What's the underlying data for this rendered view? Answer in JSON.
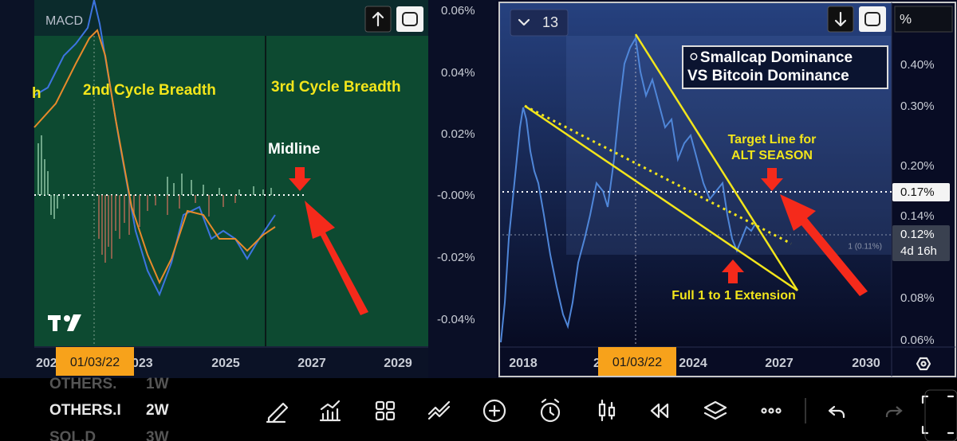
{
  "left_panel": {
    "indicator": "MACD",
    "annotations": [
      "h",
      "2nd Cycle Breadth",
      "3rd Cycle Breadth",
      "Midline"
    ],
    "y_axis_labels": [
      "0.06%",
      "0.04%",
      "0.02%",
      "-0.00%",
      "-0.02%",
      "-0.04%"
    ],
    "x_axis_labels": [
      "202",
      "023",
      "2025",
      "2027",
      "2029"
    ],
    "date_badge": "01/03/22"
  },
  "right_panel": {
    "interval": "13",
    "title_lines": [
      "⚪Smallcap Dominance",
      "VS Bitcoin Dominance"
    ],
    "annotations": [
      "Target Line for",
      "ALT SEASON",
      "Full 1 to 1 Extension"
    ],
    "fib_label": "1 (0.11%)",
    "scale_button": "%",
    "y_axis_labels": [
      "0.40%",
      "0.30%",
      "0.20%",
      "0.14%",
      "0.08%",
      "0.06%"
    ],
    "target_badge": "0.17%",
    "price_badge": "0.12%",
    "countdown": "4d 16h",
    "x_axis_labels": [
      "2018",
      "2",
      "2024",
      "2027",
      "2030"
    ],
    "date_badge": "01/03/22"
  },
  "watchlist": [
    {
      "symbol": "OTHERS.",
      "interval": "1W"
    },
    {
      "symbol": "OTHERS.I",
      "interval": "2W"
    },
    {
      "symbol": "SOL.D",
      "interval": "3W"
    }
  ]
}
